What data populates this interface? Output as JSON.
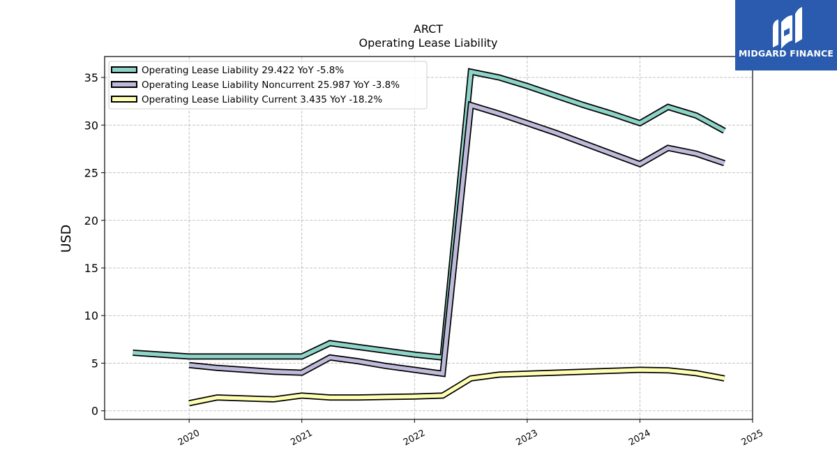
{
  "chart_data": {
    "type": "line",
    "title": "ARCT",
    "subtitle": "Operating Lease Liability",
    "ylabel": "USD",
    "xlabel": "",
    "xlim": [
      2019.25,
      2025.0
    ],
    "ylim": [
      -0.9,
      37.2
    ],
    "yticks": [
      0,
      5,
      10,
      15,
      20,
      25,
      30,
      35
    ],
    "xticks": [
      2020,
      2021,
      2022,
      2023,
      2024,
      2025
    ],
    "grid": true,
    "legend_position": "top-left",
    "series": [
      {
        "name": "Operating Lease Liability  29.422 YoY -5.8%",
        "color": "#8dd3c7",
        "points": [
          [
            2019.5,
            6.1
          ],
          [
            2020.0,
            5.7
          ],
          [
            2020.25,
            5.7
          ],
          [
            2020.5,
            5.7
          ],
          [
            2020.75,
            5.7
          ],
          [
            2021.0,
            5.7
          ],
          [
            2021.25,
            7.1
          ],
          [
            2021.5,
            6.7
          ],
          [
            2021.75,
            6.3
          ],
          [
            2022.0,
            5.9
          ],
          [
            2022.25,
            5.6
          ],
          [
            2022.5,
            35.6
          ],
          [
            2022.75,
            35.0
          ],
          [
            2023.0,
            34.1
          ],
          [
            2023.25,
            33.1
          ],
          [
            2023.5,
            32.1
          ],
          [
            2023.75,
            31.2
          ],
          [
            2024.0,
            30.2
          ],
          [
            2024.25,
            31.9
          ],
          [
            2024.5,
            31.0
          ],
          [
            2024.75,
            29.4
          ]
        ]
      },
      {
        "name": "Operating Lease Liability Noncurrent  25.987 YoY -3.8%",
        "color": "#bebada",
        "points": [
          [
            2020.0,
            4.8
          ],
          [
            2020.25,
            4.5
          ],
          [
            2020.5,
            4.3
          ],
          [
            2020.75,
            4.1
          ],
          [
            2021.0,
            4.0
          ],
          [
            2021.25,
            5.6
          ],
          [
            2021.5,
            5.2
          ],
          [
            2021.75,
            4.7
          ],
          [
            2022.0,
            4.3
          ],
          [
            2022.25,
            3.9
          ],
          [
            2022.5,
            32.1
          ],
          [
            2022.75,
            31.2
          ],
          [
            2023.0,
            30.2
          ],
          [
            2023.25,
            29.2
          ],
          [
            2023.5,
            28.1
          ],
          [
            2023.75,
            27.0
          ],
          [
            2024.0,
            25.9
          ],
          [
            2024.25,
            27.6
          ],
          [
            2024.5,
            27.0
          ],
          [
            2024.75,
            26.0
          ]
        ]
      },
      {
        "name": "Operating Lease Liability Current  3.435 YoY -18.2%",
        "color": "#ffffb3",
        "points": [
          [
            2020.0,
            0.8
          ],
          [
            2020.25,
            1.4
          ],
          [
            2020.5,
            1.3
          ],
          [
            2020.75,
            1.2
          ],
          [
            2021.0,
            1.6
          ],
          [
            2021.25,
            1.4
          ],
          [
            2021.5,
            1.4
          ],
          [
            2021.75,
            1.45
          ],
          [
            2022.0,
            1.5
          ],
          [
            2022.25,
            1.6
          ],
          [
            2022.5,
            3.4
          ],
          [
            2022.75,
            3.8
          ],
          [
            2023.0,
            3.9
          ],
          [
            2023.25,
            4.0
          ],
          [
            2023.5,
            4.1
          ],
          [
            2023.75,
            4.2
          ],
          [
            2024.0,
            4.3
          ],
          [
            2024.25,
            4.25
          ],
          [
            2024.5,
            3.95
          ],
          [
            2024.75,
            3.4
          ]
        ]
      }
    ]
  },
  "logo": {
    "text": "MIDGARD FINANCE",
    "color": "#2a5bae"
  }
}
